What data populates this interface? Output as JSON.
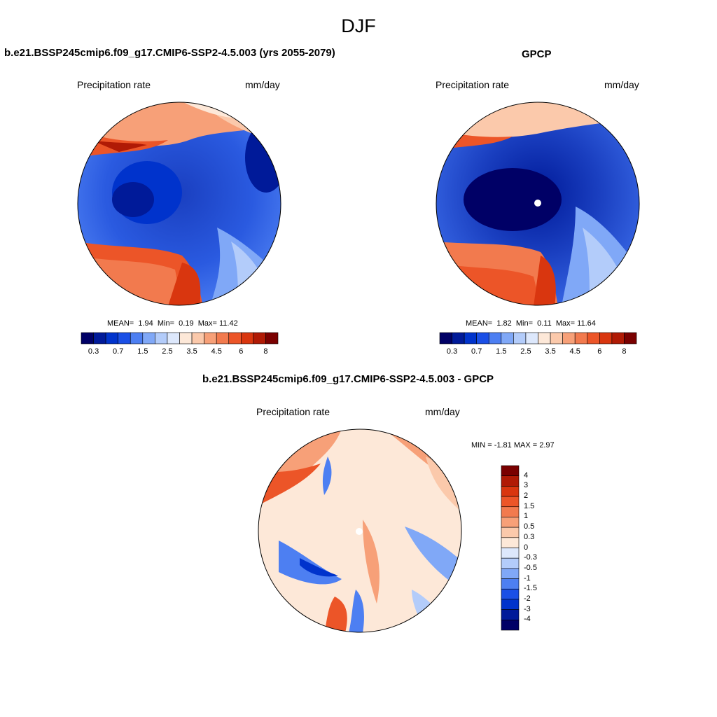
{
  "season": "DJF",
  "panels": [
    {
      "id": "model",
      "title": "b.e21.BSSP245cmip6.f09_g17.CMIP6-SSP2-4.5.003 (yrs 2055-2079)",
      "left_label": "Precipitation rate",
      "right_label": "mm/day",
      "stats": {
        "mean_label": "MEAN=",
        "mean": "1.94",
        "min_label": "Min=",
        "min": "0.19",
        "max_label": "Max=",
        "max": "11.42"
      }
    },
    {
      "id": "obs",
      "title": "GPCP",
      "left_label": "Precipitation rate",
      "right_label": "mm/day",
      "stats": {
        "mean_label": "MEAN=",
        "mean": "1.82",
        "min_label": "Min=",
        "min": "0.11",
        "max_label": "Max=",
        "max": "11.64"
      }
    },
    {
      "id": "diff",
      "title": "b.e21.BSSP245cmip6.f09_g17.CMIP6-SSP2-4.5.003 - GPCP",
      "left_label": "Precipitation rate",
      "right_label": "mm/day",
      "stats_text": "MIN =  -1.81 MAX =   2.97"
    }
  ],
  "abs_colorbar": {
    "colors": [
      "#000066",
      "#001a99",
      "#0033cc",
      "#1a4fe6",
      "#4d7ff2",
      "#80a8f7",
      "#b3ccfa",
      "#dde8fc",
      "#fde8d8",
      "#fbc9ab",
      "#f7a078",
      "#f27a4e",
      "#ec5528",
      "#d9360f",
      "#b01a05",
      "#7a0000"
    ],
    "ticks": [
      "0.3",
      "0.7",
      "1.5",
      "2.5",
      "3.5",
      "4.5",
      "6",
      "8"
    ]
  },
  "diff_colorbar": {
    "colors": [
      "#7a0000",
      "#b01a05",
      "#d9360f",
      "#ec5528",
      "#f27a4e",
      "#f7a078",
      "#fbc9ab",
      "#fde8d8",
      "#dde8fc",
      "#b3ccfa",
      "#80a8f7",
      "#4d7ff2",
      "#1a4fe6",
      "#0033cc",
      "#001a99",
      "#000066"
    ],
    "labels": [
      "4",
      "3",
      "2",
      "1.5",
      "1",
      "0.5",
      "0.3",
      "0",
      "-0.3",
      "-0.5",
      "-1",
      "-1.5",
      "-2",
      "-3",
      "-4"
    ]
  }
}
